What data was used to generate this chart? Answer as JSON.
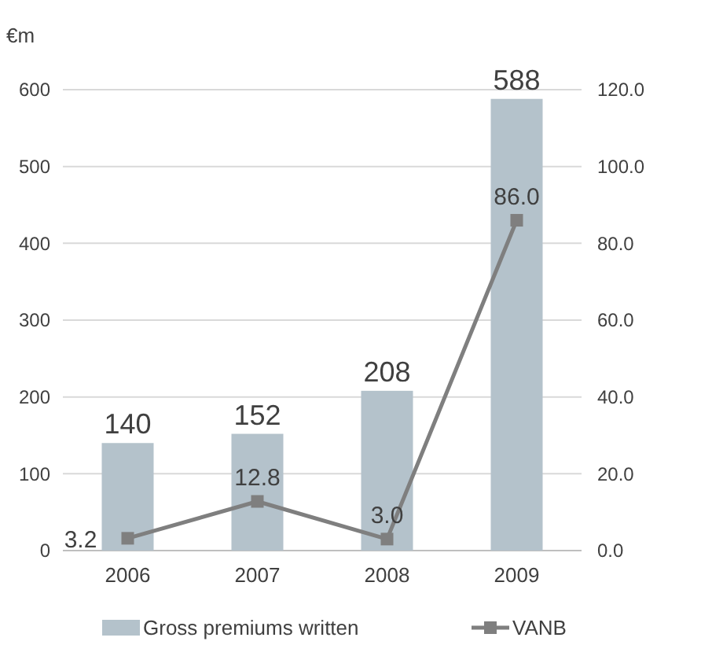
{
  "chart_data": {
    "type": "bar",
    "ylabel": "€m",
    "categories": [
      "2006",
      "2007",
      "2008",
      "2009"
    ],
    "series": [
      {
        "name": "Gross premiums written",
        "color": "#b4c2cb",
        "values": [
          140,
          152,
          208,
          588
        ]
      },
      {
        "name": "VANB",
        "type": "line",
        "axis": "y2",
        "color": "#7f7f7f",
        "values": [
          3.2,
          12.8,
          3.0,
          86.0
        ],
        "value_labels": [
          "3.2",
          "12.8",
          "3.0",
          "86.0"
        ]
      }
    ],
    "ylim": [
      0,
      600
    ],
    "yticks": [
      0,
      100,
      200,
      300,
      400,
      500,
      600
    ],
    "y2lim": [
      0,
      120
    ],
    "y2ticks": [
      {
        "value": 0,
        "label": "0.0"
      },
      {
        "value": 20,
        "label": "20.0"
      },
      {
        "value": 40,
        "label": "40.0"
      },
      {
        "value": 60,
        "label": "60.0"
      },
      {
        "value": 80,
        "label": "80.0"
      },
      {
        "value": 100,
        "label": "100.0"
      },
      {
        "value": 120,
        "label": "120.0"
      }
    ],
    "grid": "y",
    "legend": "bottom",
    "marker": "square",
    "line_style": "solid",
    "data_labels": true
  }
}
